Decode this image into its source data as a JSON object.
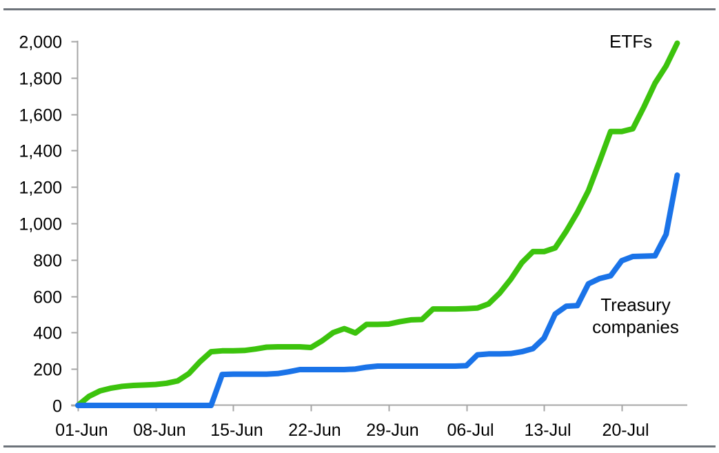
{
  "colors": {
    "etfs_line": "#3cc30d",
    "treasury_line": "#1a73e8",
    "axis": "#a6a6a6",
    "divider": "#6d737a",
    "text": "#000000",
    "background": "#ffffff"
  },
  "dividers": {
    "top": true,
    "bottom": true
  },
  "chart_data": {
    "type": "line",
    "title": "",
    "xlabel": "",
    "ylabel": "",
    "grid": false,
    "legend_position": "inline-annotations",
    "ylim": [
      0,
      2000
    ],
    "y_ticks": [
      0,
      200,
      400,
      600,
      800,
      1000,
      1200,
      1400,
      1600,
      1800,
      2000
    ],
    "y_tick_labels": [
      "0",
      "200",
      "400",
      "600",
      "800",
      "1,000",
      "1,200",
      "1,400",
      "1,600",
      "1,800",
      "2,000"
    ],
    "x_tick_labels": [
      "01-Jun",
      "08-Jun",
      "15-Jun",
      "22-Jun",
      "29-Jun",
      "06-Jul",
      "13-Jul",
      "20-Jul"
    ],
    "x_tick_indices": [
      0,
      7,
      14,
      21,
      28,
      35,
      42,
      49
    ],
    "x": [
      "01-Jun",
      "02-Jun",
      "03-Jun",
      "04-Jun",
      "05-Jun",
      "06-Jun",
      "07-Jun",
      "08-Jun",
      "09-Jun",
      "10-Jun",
      "11-Jun",
      "12-Jun",
      "13-Jun",
      "14-Jun",
      "15-Jun",
      "16-Jun",
      "17-Jun",
      "18-Jun",
      "19-Jun",
      "20-Jun",
      "21-Jun",
      "22-Jun",
      "23-Jun",
      "24-Jun",
      "25-Jun",
      "26-Jun",
      "27-Jun",
      "28-Jun",
      "29-Jun",
      "30-Jun",
      "01-Jul",
      "02-Jul",
      "03-Jul",
      "04-Jul",
      "05-Jul",
      "06-Jul",
      "07-Jul",
      "08-Jul",
      "09-Jul",
      "10-Jul",
      "11-Jul",
      "12-Jul",
      "13-Jul",
      "14-Jul",
      "15-Jul",
      "16-Jul",
      "17-Jul",
      "18-Jul",
      "19-Jul",
      "20-Jul",
      "21-Jul",
      "22-Jul",
      "23-Jul",
      "24-Jul",
      "25-Jul"
    ],
    "series": [
      {
        "name": "ETFs",
        "color": "#3cc30d",
        "values": [
          0,
          50,
          80,
          95,
          105,
          110,
          112,
          115,
          122,
          135,
          175,
          240,
          295,
          300,
          300,
          302,
          310,
          320,
          322,
          322,
          322,
          318,
          355,
          400,
          422,
          398,
          445,
          445,
          447,
          460,
          470,
          472,
          530,
          530,
          530,
          532,
          535,
          558,
          617,
          693,
          784,
          845,
          845,
          865,
          957,
          1060,
          1180,
          1340,
          1505,
          1505,
          1520,
          1640,
          1770,
          1865,
          1990
        ]
      },
      {
        "name": "Treasury companies",
        "color": "#1a73e8",
        "values": [
          0,
          0,
          0,
          0,
          0,
          0,
          0,
          0,
          0,
          0,
          0,
          0,
          0,
          170,
          172,
          172,
          172,
          172,
          175,
          185,
          197,
          197,
          197,
          197,
          197,
          200,
          210,
          216,
          216,
          216,
          216,
          216,
          216,
          216,
          216,
          218,
          278,
          283,
          283,
          285,
          295,
          312,
          370,
          502,
          545,
          548,
          668,
          697,
          712,
          795,
          818,
          820,
          822,
          940,
          1265
        ]
      }
    ]
  },
  "annotations": {
    "etfs_label": "ETFs",
    "treasury_label": "Treasury companies"
  }
}
